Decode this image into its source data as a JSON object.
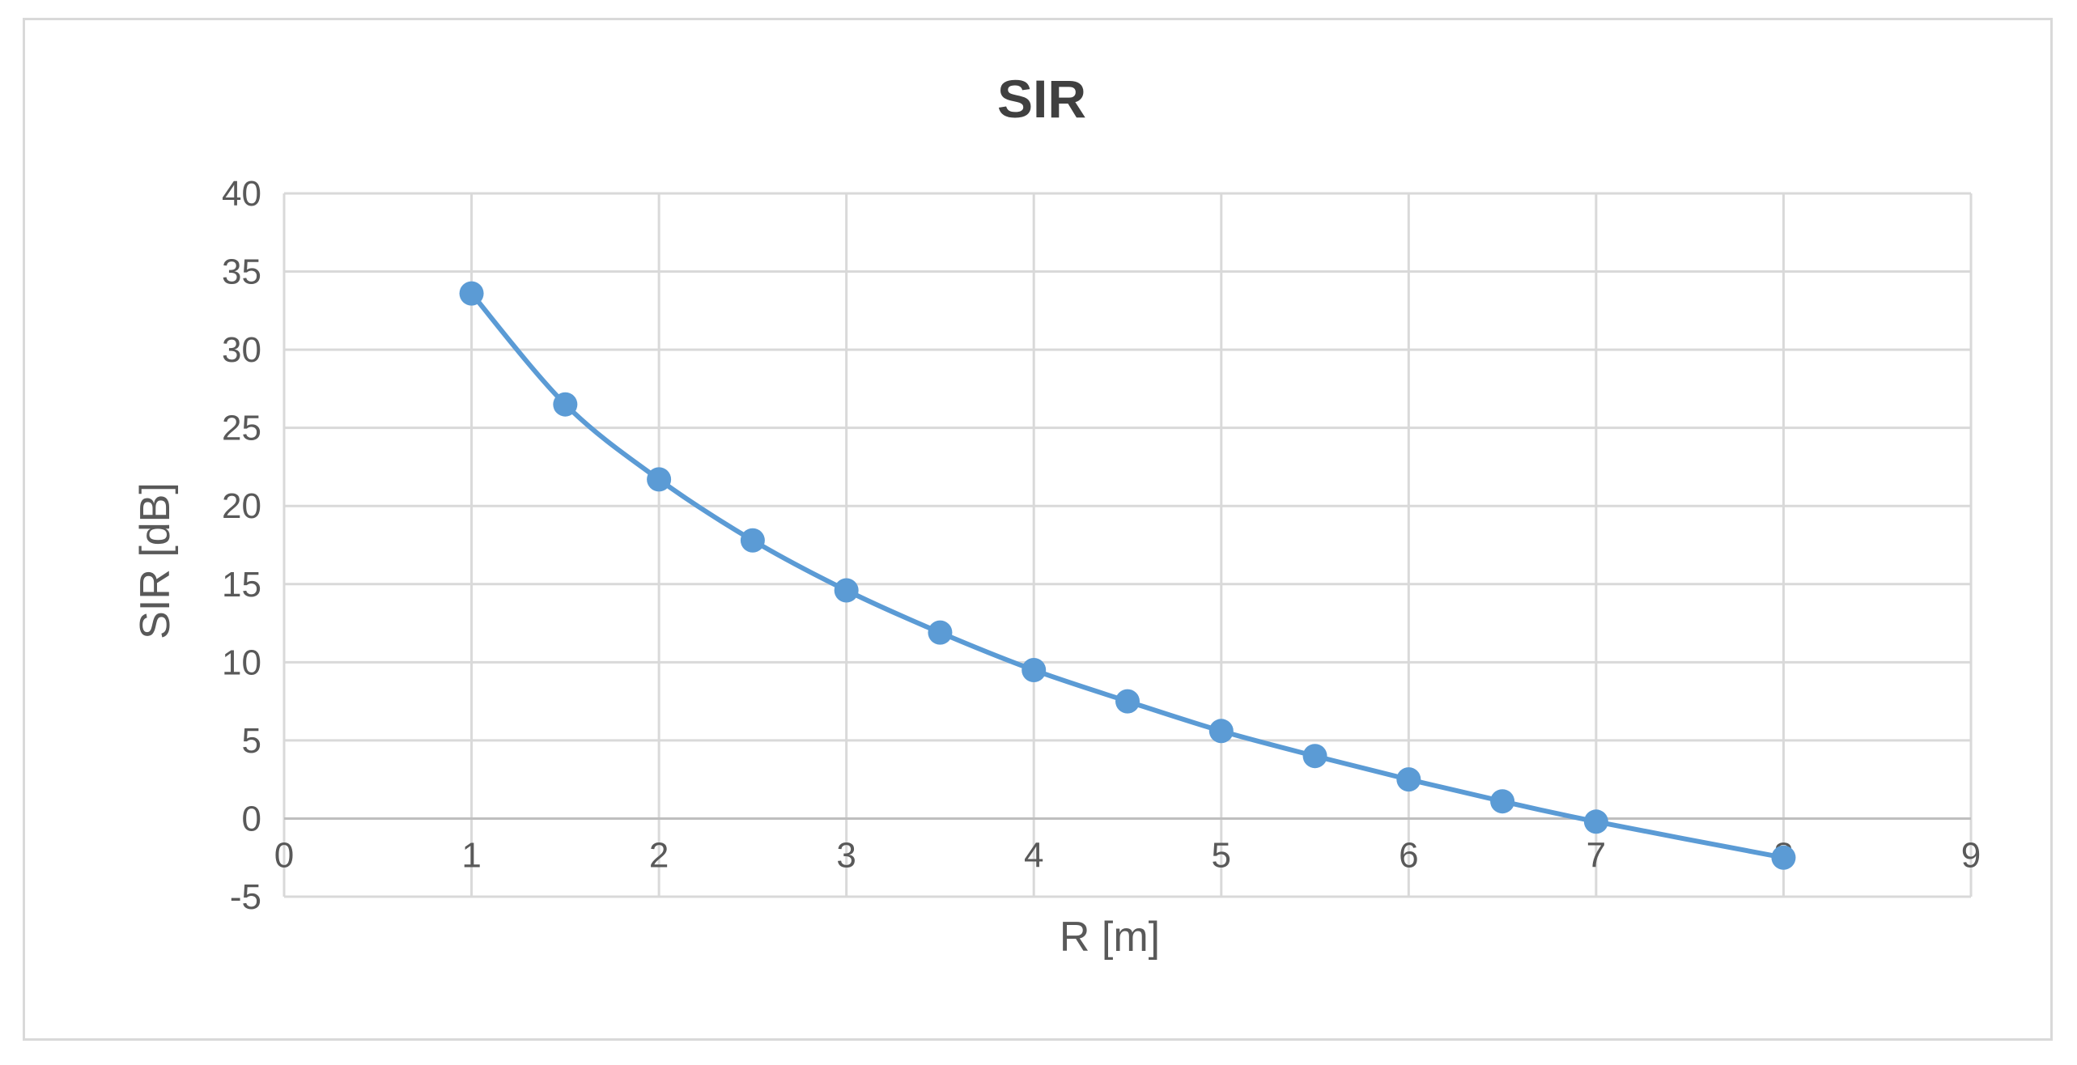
{
  "chart_data": {
    "type": "line",
    "title": "SIR",
    "xlabel": "R [m]",
    "ylabel": "SIR [dB]",
    "xlim": [
      0,
      9
    ],
    "ylim": [
      -5,
      40
    ],
    "x_ticks": [
      0,
      1,
      2,
      3,
      4,
      5,
      6,
      7,
      8,
      9
    ],
    "y_ticks": [
      -5,
      0,
      5,
      10,
      15,
      20,
      25,
      30,
      35,
      40
    ],
    "grid": true,
    "legend": "none",
    "series": [
      {
        "color": "#5b9bd5",
        "markers": true,
        "x": [
          1,
          1.5,
          2,
          2.5,
          3,
          3.5,
          4,
          4.5,
          5,
          5.5,
          6,
          6.5,
          7,
          8
        ],
        "y": [
          33.6,
          26.5,
          21.7,
          17.8,
          14.6,
          11.9,
          9.5,
          7.5,
          5.6,
          4.0,
          2.5,
          1.1,
          -0.2,
          -2.5
        ]
      }
    ]
  }
}
